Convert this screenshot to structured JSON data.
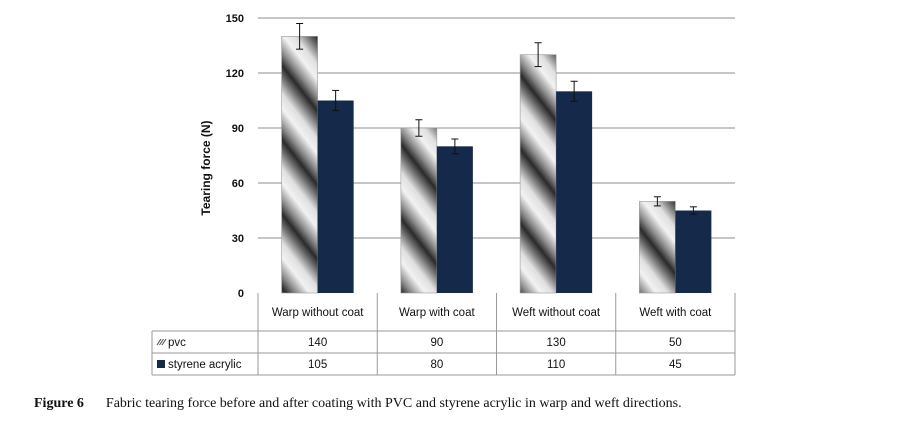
{
  "chart_data": {
    "type": "bar",
    "ylabel": "Tearing force (N)",
    "ylim": [
      0,
      150
    ],
    "yticks": [
      "0",
      "30",
      "60",
      "90",
      "120",
      "150"
    ],
    "categories": [
      "Warp without coat",
      "Warp with coat",
      "Weft without coat",
      "Weft with coat"
    ],
    "series": [
      {
        "name": "pvc",
        "values": [
          140,
          90,
          130,
          50
        ],
        "errors": [
          7,
          4.5,
          6.5,
          2.5
        ],
        "color": "striped-gray"
      },
      {
        "name": "styrene acrylic",
        "values": [
          105,
          80,
          110,
          45
        ],
        "errors": [
          5.5,
          4,
          5.5,
          2
        ],
        "color": "#15294a"
      }
    ],
    "data_table": {
      "rows": [
        {
          "label": "pvc",
          "cells": [
            "140",
            "90",
            "130",
            "50"
          ]
        },
        {
          "label": "styrene acrylic",
          "cells": [
            "105",
            "80",
            "110",
            "45"
          ]
        }
      ]
    },
    "grid": true
  },
  "caption": {
    "number": "Figure 6",
    "text": "Fabric tearing force before and after coating with PVC and styrene acrylic in warp and weft directions."
  }
}
